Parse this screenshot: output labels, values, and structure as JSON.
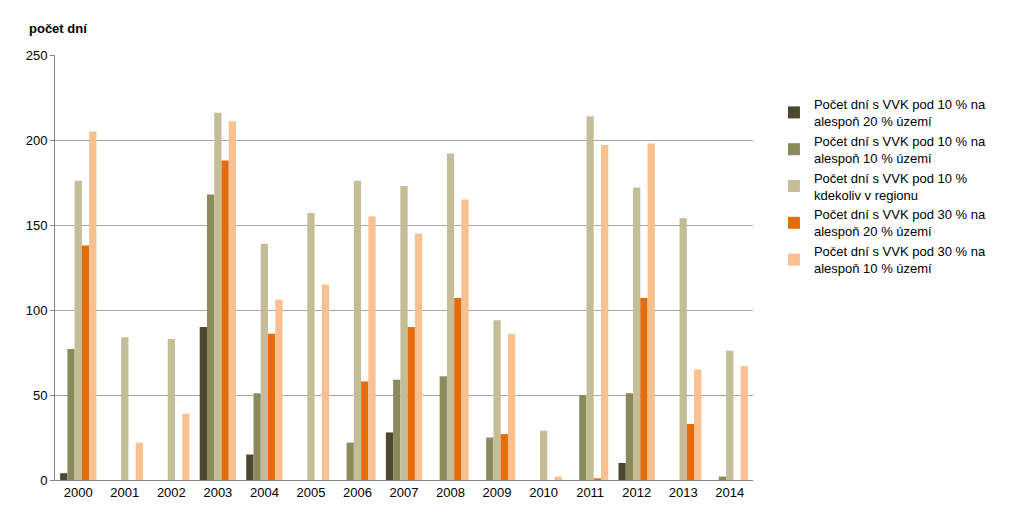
{
  "chart_data": {
    "type": "bar",
    "ylabel": "počet dní",
    "categories": [
      "2000",
      "2001",
      "2002",
      "2003",
      "2004",
      "2005",
      "2006",
      "2007",
      "2008",
      "2009",
      "2010",
      "2011",
      "2012",
      "2013",
      "2014"
    ],
    "series": [
      {
        "name": "Počet dní s VVK pod 10 % na alespoň 20 % území",
        "color": "#4d4631",
        "values": [
          4,
          0,
          0,
          90,
          15,
          0,
          0,
          28,
          0,
          0,
          0,
          0,
          10,
          0,
          0
        ]
      },
      {
        "name": "Počet dní s VVK pod 10 % na alespoň 10 % území",
        "color": "#8b8a5d",
        "values": [
          77,
          0,
          0,
          168,
          51,
          0,
          22,
          59,
          61,
          25,
          0,
          50,
          51,
          0,
          2
        ]
      },
      {
        "name": "Počet dní s VVK pod 10 % kdekoliv v regionu",
        "color": "#c4bd97",
        "values": [
          176,
          84,
          83,
          216,
          139,
          157,
          176,
          173,
          192,
          94,
          29,
          214,
          172,
          154,
          76
        ]
      },
      {
        "name": "Počet dní s VVK pod 30 % na alespoň 20 % území",
        "color": "#e46c0a",
        "values": [
          138,
          0,
          0,
          188,
          86,
          0,
          58,
          90,
          107,
          27,
          0,
          1,
          107,
          33,
          0
        ]
      },
      {
        "name": "Počet dní s VVK pod 30 % na alespoň 10 % území",
        "color": "#fac08f",
        "values": [
          205,
          22,
          39,
          211,
          106,
          115,
          155,
          145,
          165,
          86,
          2,
          197,
          198,
          65,
          67
        ]
      }
    ],
    "ylim": [
      0,
      250
    ],
    "yticks": [
      0,
      50,
      100,
      150,
      200,
      250
    ],
    "grid": true,
    "legend": "right"
  }
}
